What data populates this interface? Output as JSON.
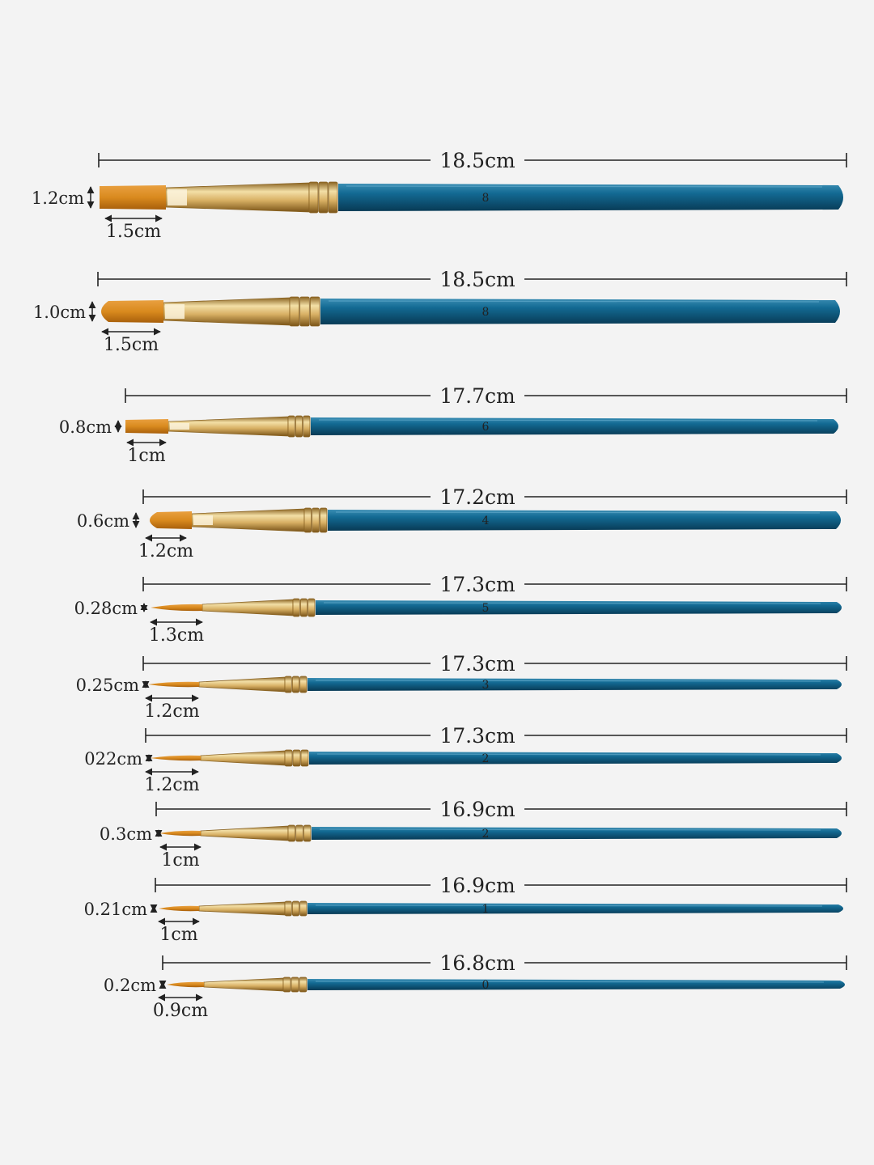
{
  "colors": {
    "background": "#f3f3f3",
    "handle": "#0f5f86",
    "handle_dark": "#0a3e59",
    "ferrule": "#d8b064",
    "ferrule_dark": "#8a6322",
    "bristle": "#d98a1e",
    "bristle_dark": "#a85f0b",
    "line": "#222222"
  },
  "brushes": [
    {
      "length_label": "18.5cm",
      "width_label": "1.2cm",
      "tip_label": "1.5cm",
      "handle_number": "8",
      "shape": "flat"
    },
    {
      "length_label": "18.5cm",
      "width_label": "1.0cm",
      "tip_label": "1.5cm",
      "handle_number": "8",
      "shape": "filbert"
    },
    {
      "length_label": "17.7cm",
      "width_label": "0.8cm",
      "tip_label": "1cm",
      "handle_number": "6",
      "shape": "flat"
    },
    {
      "length_label": "17.2cm",
      "width_label": "0.6cm",
      "tip_label": "1.2cm",
      "handle_number": "4",
      "shape": "filbert"
    },
    {
      "length_label": "17.3cm",
      "width_label": "0.28cm",
      "tip_label": "1.3cm",
      "handle_number": "5",
      "shape": "round"
    },
    {
      "length_label": "17.3cm",
      "width_label": "0.25cm",
      "tip_label": "1.2cm",
      "handle_number": "3",
      "shape": "round"
    },
    {
      "length_label": "17.3cm",
      "width_label": "022cm",
      "tip_label": "1.2cm",
      "handle_number": "2",
      "shape": "round"
    },
    {
      "length_label": "16.9cm",
      "width_label": "0.3cm",
      "tip_label": "1cm",
      "handle_number": "2",
      "shape": "round"
    },
    {
      "length_label": "16.9cm",
      "width_label": "0.21cm",
      "tip_label": "1cm",
      "handle_number": "1",
      "shape": "round"
    },
    {
      "length_label": "16.8cm",
      "width_label": "0.2cm",
      "tip_label": "0.9cm",
      "handle_number": "0",
      "shape": "round"
    }
  ]
}
